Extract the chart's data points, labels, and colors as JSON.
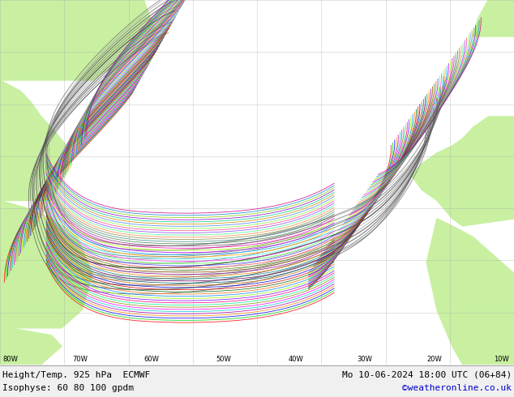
{
  "title_left": "Height/Temp. 925 hPa  ECMWF",
  "title_right": "Mo 10-06-2024 18:00 UTC (06+84)",
  "subtitle_left": "Isophyse: 60 80 100 gpdm",
  "subtitle_right": "©weatheronline.co.uk",
  "ocean_color": "#e8e8e8",
  "land_color": "#c8f0a0",
  "grid_color": "#aaaaaa",
  "text_color": "#000000",
  "credit_color": "#0000cc",
  "bottom_bar_color": "#f0f0f0",
  "figsize": [
    6.34,
    4.9
  ],
  "dpi": 100,
  "title_fontsize": 8,
  "ensemble_colors": [
    "#ff0000",
    "#00cc00",
    "#0000ff",
    "#ff8800",
    "#aa00aa",
    "#00cccc",
    "#ff00ff",
    "#888800",
    "#00ff88",
    "#ff0088",
    "#8800ff",
    "#88ff00",
    "#0088ff",
    "#ff6600",
    "#006600",
    "#cc0000",
    "#0000cc",
    "#cc6600",
    "#006666",
    "#660066",
    "#008888",
    "#ff8800",
    "#880088",
    "#884400",
    "#448800",
    "#ff4444",
    "#4444ff",
    "#44ff44",
    "#ff44ff",
    "#44ffff",
    "#ffaa00",
    "#00aaff",
    "#aa00ff",
    "#aaff00",
    "#ff00aa",
    "#884488",
    "#448844",
    "#448888",
    "#888844",
    "#ff8844",
    "#44ff88",
    "#8844ff",
    "#ff4488",
    "#88ff44",
    "#4488ff",
    "#cc8800",
    "#00cc88",
    "#8800cc",
    "#88cc00",
    "#0088cc",
    "#cc0088"
  ],
  "gray_colors": [
    "#444444",
    "#555555",
    "#666666",
    "#777777",
    "#888888",
    "#999999"
  ]
}
